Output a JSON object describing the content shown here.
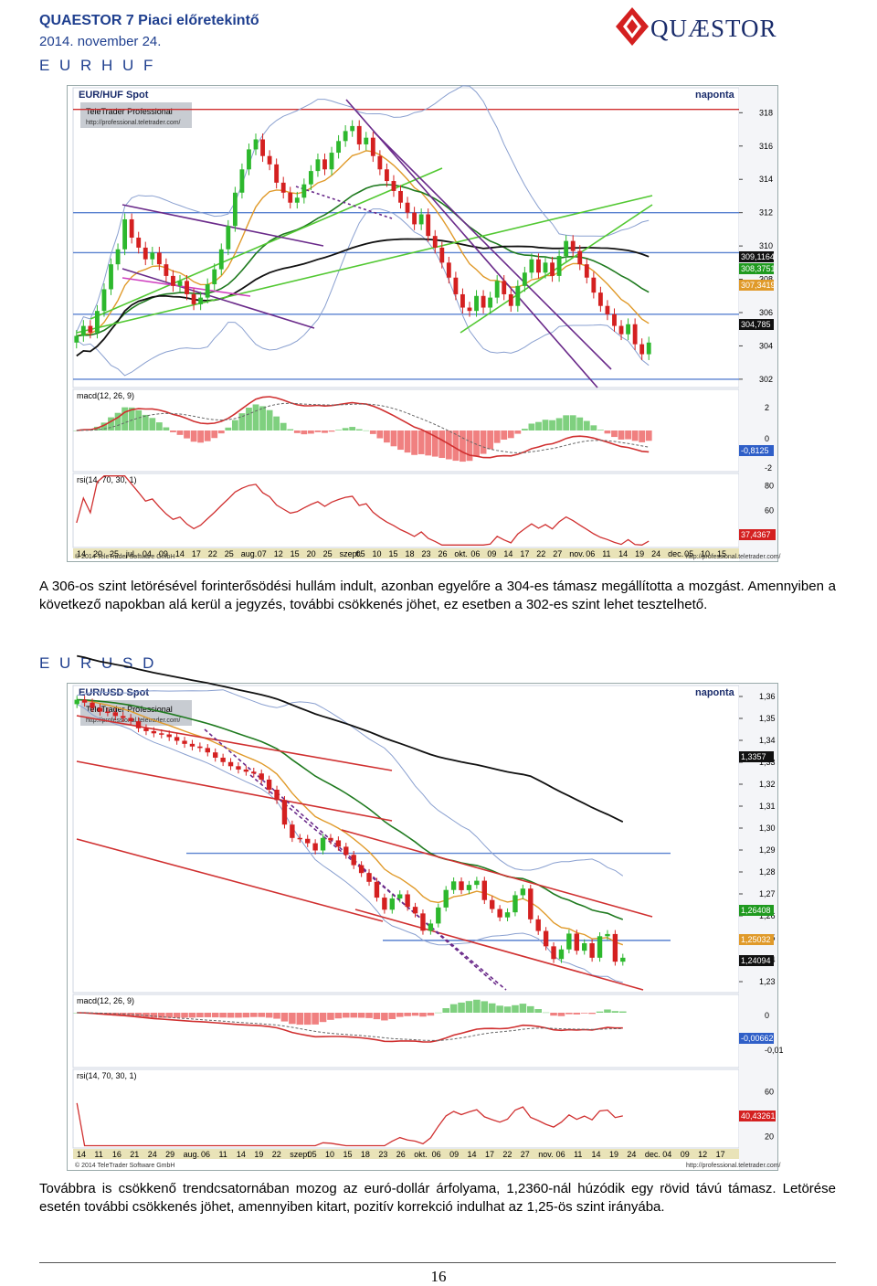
{
  "header": {
    "title": "QUAESTOR 7  Piaci előretekintő",
    "date": "2014. november 24.",
    "logo_text": "QUÆSTOR"
  },
  "sections": [
    {
      "title": "E U R H U F",
      "paragraph": "A 306-os szint letörésével forinterősödési hullám indult, azonban egyelőre a 304-es támasz megállította a mozgást. Amennyiben a következő napokban alá kerül a jegyzés, további csökkenés jöhet, ez esetben a 302-es szint lehet tesztelhető."
    },
    {
      "title": "E U R U S D",
      "paragraph": "Továbbra is csökkenő trendcsatornában mozog az euró-dollár árfolyama, 1,2360-nál húzódik egy rövid távú támasz. Letörése esetén további csökkenés jöhet, amennyiben kitart, pozitív korrekció indulhat az 1,25-ös szint irányába."
    }
  ],
  "page_number": "16",
  "colors": {
    "up_candle": "#2db82d",
    "down_candle": "#d42020",
    "blue_line": "#5a82d0",
    "red_line": "#d03030",
    "green_line": "#52c832",
    "dark_green": "#1f7a1f",
    "purple": "#6a2a8a",
    "orange": "#e09a2a",
    "band": "#8aa0d0",
    "tag_dark": "#111111",
    "tag_green": "#1f9a1f",
    "tag_red": "#d42020",
    "tag_blue": "#2f5fc8"
  },
  "chart_data": [
    {
      "type": "candlestick",
      "title": "EUR/HUF Spot",
      "period": "naponta",
      "watermark": "TeleTrader Professional",
      "watermark_url": "http://professional.teletrader.com/",
      "price_ticks": [
        "318",
        "316",
        "314",
        "312",
        "310",
        "308",
        "306",
        "304",
        "302"
      ],
      "price_range": [
        301.5,
        319.5
      ],
      "horizontal_levels": [
        {
          "value": 318.2,
          "color": "red"
        },
        {
          "value": 312.0,
          "color": "blue"
        },
        {
          "value": 309.6,
          "color": "blue"
        },
        {
          "value": 305.9,
          "color": "blue"
        },
        {
          "value": 302.0,
          "color": "blue"
        }
      ],
      "price_tags": [
        {
          "label": "309,1164",
          "color": "dark"
        },
        {
          "label": "308,3751",
          "color": "green"
        },
        {
          "label": "307,3419",
          "color": "orange"
        },
        {
          "label": "304,785",
          "color": "dark"
        }
      ],
      "close": [
        304.6,
        305.2,
        304.8,
        306.1,
        307.4,
        308.9,
        309.8,
        311.6,
        310.5,
        309.9,
        309.2,
        309.6,
        308.9,
        308.2,
        307.6,
        307.9,
        307.1,
        306.5,
        306.9,
        307.7,
        308.6,
        309.8,
        311.2,
        313.2,
        314.6,
        315.8,
        316.4,
        315.4,
        314.9,
        313.8,
        313.2,
        312.6,
        312.9,
        313.7,
        314.5,
        315.2,
        314.6,
        315.6,
        316.3,
        316.9,
        317.2,
        316.1,
        316.5,
        315.4,
        314.6,
        313.9,
        313.3,
        312.6,
        312.0,
        311.3,
        311.9,
        310.6,
        309.9,
        309.0,
        308.1,
        307.1,
        306.3,
        306.1,
        307.0,
        306.3,
        306.9,
        307.9,
        307.1,
        306.4,
        307.6,
        308.4,
        309.2,
        308.4,
        309.0,
        308.2,
        309.4,
        310.3,
        309.7,
        308.9,
        308.1,
        307.2,
        306.4,
        305.9,
        305.2,
        304.7,
        305.3,
        304.1,
        303.5,
        304.2
      ],
      "macd_label": "macd(12, 26, 9)",
      "macd_ticks": [
        "2",
        "0",
        "-2"
      ],
      "macd_tag": "-0,8125",
      "rsi_label": "rsi(14, 70, 30, 1)",
      "rsi_ticks": [
        "80",
        "60",
        "40"
      ],
      "rsi_tag": "37,4367",
      "date_ticks": [
        "14",
        "20",
        "25",
        "jul.",
        "04",
        "09",
        "14",
        "17",
        "22",
        "25",
        "aug.",
        "07",
        "12",
        "15",
        "20",
        "25",
        "szept.",
        "05",
        "10",
        "15",
        "18",
        "23",
        "26",
        "okt.",
        "06",
        "09",
        "14",
        "17",
        "22",
        "27",
        "nov.",
        "06",
        "11",
        "14",
        "19",
        "24",
        "dec.",
        "05",
        "10",
        "15"
      ],
      "copyright": "© 2014 TeleTrader Software GmbH",
      "footer_url": "http://professional.teletrader.com/"
    },
    {
      "type": "candlestick",
      "title": "EUR/USD Spot",
      "period": "naponta",
      "watermark": "TeleTrader Professional",
      "watermark_url": "http://professional.teletrader.com/",
      "price_ticks": [
        "1,36",
        "1,35",
        "1,34",
        "1,33",
        "1,32",
        "1,31",
        "1,30",
        "1,29",
        "1,28",
        "1,27",
        "1,26",
        "1,25",
        "1,24",
        "1,23"
      ],
      "price_range": [
        1.225,
        1.365
      ],
      "horizontal_levels": [
        {
          "value": 1.2885,
          "color": "blue"
        },
        {
          "value": 1.2488,
          "color": "blue"
        }
      ],
      "price_tags": [
        {
          "label": "1,3357",
          "color": "dark"
        },
        {
          "label": "1,26408",
          "color": "green"
        },
        {
          "label": "1,25032",
          "color": "orange"
        },
        {
          "label": "1,24094",
          "color": "dark"
        }
      ],
      "close": [
        1.3585,
        1.3572,
        1.3548,
        1.3531,
        1.3528,
        1.3511,
        1.3502,
        1.3487,
        1.3455,
        1.3442,
        1.3432,
        1.3427,
        1.3415,
        1.3398,
        1.3384,
        1.3372,
        1.3365,
        1.3345,
        1.3321,
        1.3301,
        1.3282,
        1.3267,
        1.3257,
        1.3249,
        1.3221,
        1.3175,
        1.3128,
        1.3016,
        1.2955,
        1.2951,
        1.2931,
        1.2898,
        1.2955,
        1.2944,
        1.2915,
        1.2878,
        1.2831,
        1.2795,
        1.2755,
        1.2683,
        1.2628,
        1.2679,
        1.2698,
        1.2641,
        1.2611,
        1.2532,
        1.2565,
        1.2638,
        1.2718,
        1.2757,
        1.2717,
        1.2741,
        1.276,
        1.2672,
        1.2631,
        1.2593,
        1.2616,
        1.2694,
        1.2724,
        1.2584,
        1.2531,
        1.2461,
        1.2403,
        1.2447,
        1.2519,
        1.2441,
        1.2475,
        1.2409,
        1.2507,
        1.2517,
        1.2391,
        1.2409
      ],
      "macd_label": "macd(12, 26, 9)",
      "macd_ticks": [
        "0",
        "-0,01"
      ],
      "macd_tag": "-0,00662",
      "rsi_label": "rsi(14, 70, 30, 1)",
      "rsi_ticks": [
        "60",
        "40",
        "20"
      ],
      "rsi_tag": "40,43261",
      "date_ticks": [
        "14",
        "11",
        "16",
        "21",
        "24",
        "29",
        "aug.",
        "06",
        "11",
        "14",
        "19",
        "22",
        "szept.",
        "05",
        "10",
        "15",
        "18",
        "23",
        "26",
        "okt.",
        "06",
        "09",
        "14",
        "17",
        "22",
        "27",
        "nov.",
        "06",
        "11",
        "14",
        "19",
        "24",
        "dec.",
        "04",
        "09",
        "12",
        "17"
      ],
      "copyright": "© 2014 TeleTrader Software GmbH",
      "footer_url": "http://professional.teletrader.com/"
    }
  ]
}
